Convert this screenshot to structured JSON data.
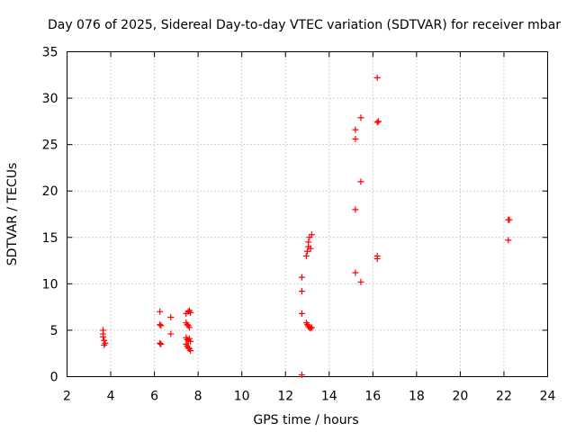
{
  "chart_data": {
    "type": "scatter",
    "title": "Day 076 of 2025, Sidereal Day-to-day VTEC variation (SDTVAR) for receiver mbar",
    "xlabel": "GPS time / hours",
    "ylabel": "SDTVAR / TECUs",
    "xlim": [
      2,
      24
    ],
    "ylim": [
      0,
      35
    ],
    "xticks": [
      2,
      4,
      6,
      8,
      10,
      12,
      14,
      16,
      18,
      20,
      22,
      24
    ],
    "yticks": [
      0,
      5,
      10,
      15,
      20,
      25,
      30,
      35
    ],
    "grid": true,
    "marker": "+",
    "series": [
      {
        "name": "SDTVAR",
        "color": "#ff0000",
        "points": [
          [
            3.65,
            5.0
          ],
          [
            3.65,
            4.6
          ],
          [
            3.65,
            4.3
          ],
          [
            3.7,
            3.9
          ],
          [
            3.75,
            3.6
          ],
          [
            3.7,
            3.4
          ],
          [
            6.25,
            7.0
          ],
          [
            6.25,
            5.6
          ],
          [
            6.3,
            5.5
          ],
          [
            6.25,
            3.6
          ],
          [
            6.3,
            3.5
          ],
          [
            6.75,
            6.4
          ],
          [
            6.75,
            4.6
          ],
          [
            7.45,
            6.8
          ],
          [
            7.55,
            7.0
          ],
          [
            7.6,
            7.1
          ],
          [
            7.65,
            6.9
          ],
          [
            7.45,
            5.8
          ],
          [
            7.5,
            5.6
          ],
          [
            7.55,
            5.5
          ],
          [
            7.6,
            5.3
          ],
          [
            7.45,
            4.2
          ],
          [
            7.5,
            4.0
          ],
          [
            7.55,
            3.9
          ],
          [
            7.6,
            4.1
          ],
          [
            7.65,
            3.8
          ],
          [
            7.45,
            3.5
          ],
          [
            7.5,
            3.3
          ],
          [
            7.55,
            3.1
          ],
          [
            7.6,
            3.0
          ],
          [
            7.65,
            2.8
          ],
          [
            12.75,
            10.7
          ],
          [
            12.75,
            9.2
          ],
          [
            12.75,
            6.8
          ],
          [
            12.75,
            0.2
          ],
          [
            12.95,
            13.0
          ],
          [
            13.0,
            13.5
          ],
          [
            13.05,
            14.0
          ],
          [
            13.05,
            14.5
          ],
          [
            13.1,
            15.0
          ],
          [
            13.15,
            13.8
          ],
          [
            13.2,
            15.3
          ],
          [
            12.95,
            5.8
          ],
          [
            13.0,
            5.6
          ],
          [
            13.05,
            5.4
          ],
          [
            13.1,
            5.3
          ],
          [
            13.15,
            5.2
          ],
          [
            13.2,
            5.3
          ],
          [
            15.2,
            26.6
          ],
          [
            15.2,
            25.6
          ],
          [
            15.2,
            18.0
          ],
          [
            15.2,
            11.2
          ],
          [
            15.45,
            27.9
          ],
          [
            15.45,
            21.0
          ],
          [
            15.45,
            10.2
          ],
          [
            16.2,
            32.2
          ],
          [
            16.2,
            27.4
          ],
          [
            16.25,
            27.5
          ],
          [
            16.2,
            13.0
          ],
          [
            16.2,
            12.7
          ],
          [
            22.2,
            16.9
          ],
          [
            22.25,
            16.9
          ],
          [
            22.2,
            14.7
          ]
        ]
      }
    ]
  }
}
